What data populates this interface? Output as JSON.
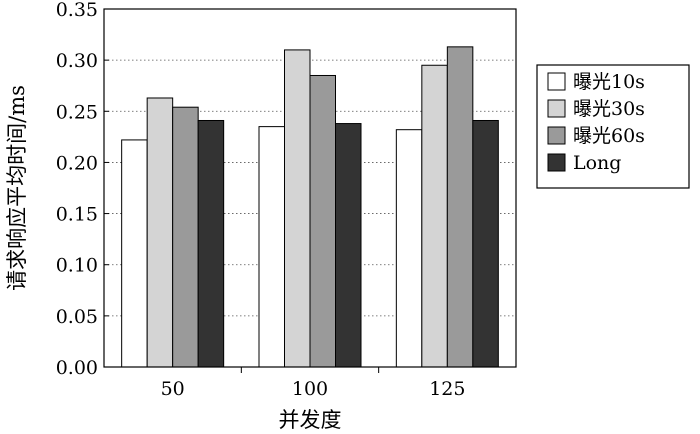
{
  "chart_data": {
    "type": "bar",
    "xlabel": "并发度",
    "ylabel": "请求响应平均时间/ms",
    "categories": [
      "50",
      "100",
      "125"
    ],
    "ylim": [
      0.0,
      0.35
    ],
    "yticks": [
      "0.00",
      "0.05",
      "0.10",
      "0.15",
      "0.20",
      "0.25",
      "0.30",
      "0.35"
    ],
    "grid": "horizontal dotted",
    "legend_position": "right",
    "series": [
      {
        "name": "曝光10s",
        "color": "#ffffff",
        "values": [
          0.222,
          0.235,
          0.232
        ]
      },
      {
        "name": "曝光30s",
        "color": "#d4d4d4",
        "values": [
          0.263,
          0.31,
          0.295
        ]
      },
      {
        "name": "曝光60s",
        "color": "#9a9a9a",
        "values": [
          0.254,
          0.285,
          0.313
        ]
      },
      {
        "name": "Long",
        "color": "#333333",
        "values": [
          0.241,
          0.238,
          0.241
        ]
      }
    ]
  }
}
